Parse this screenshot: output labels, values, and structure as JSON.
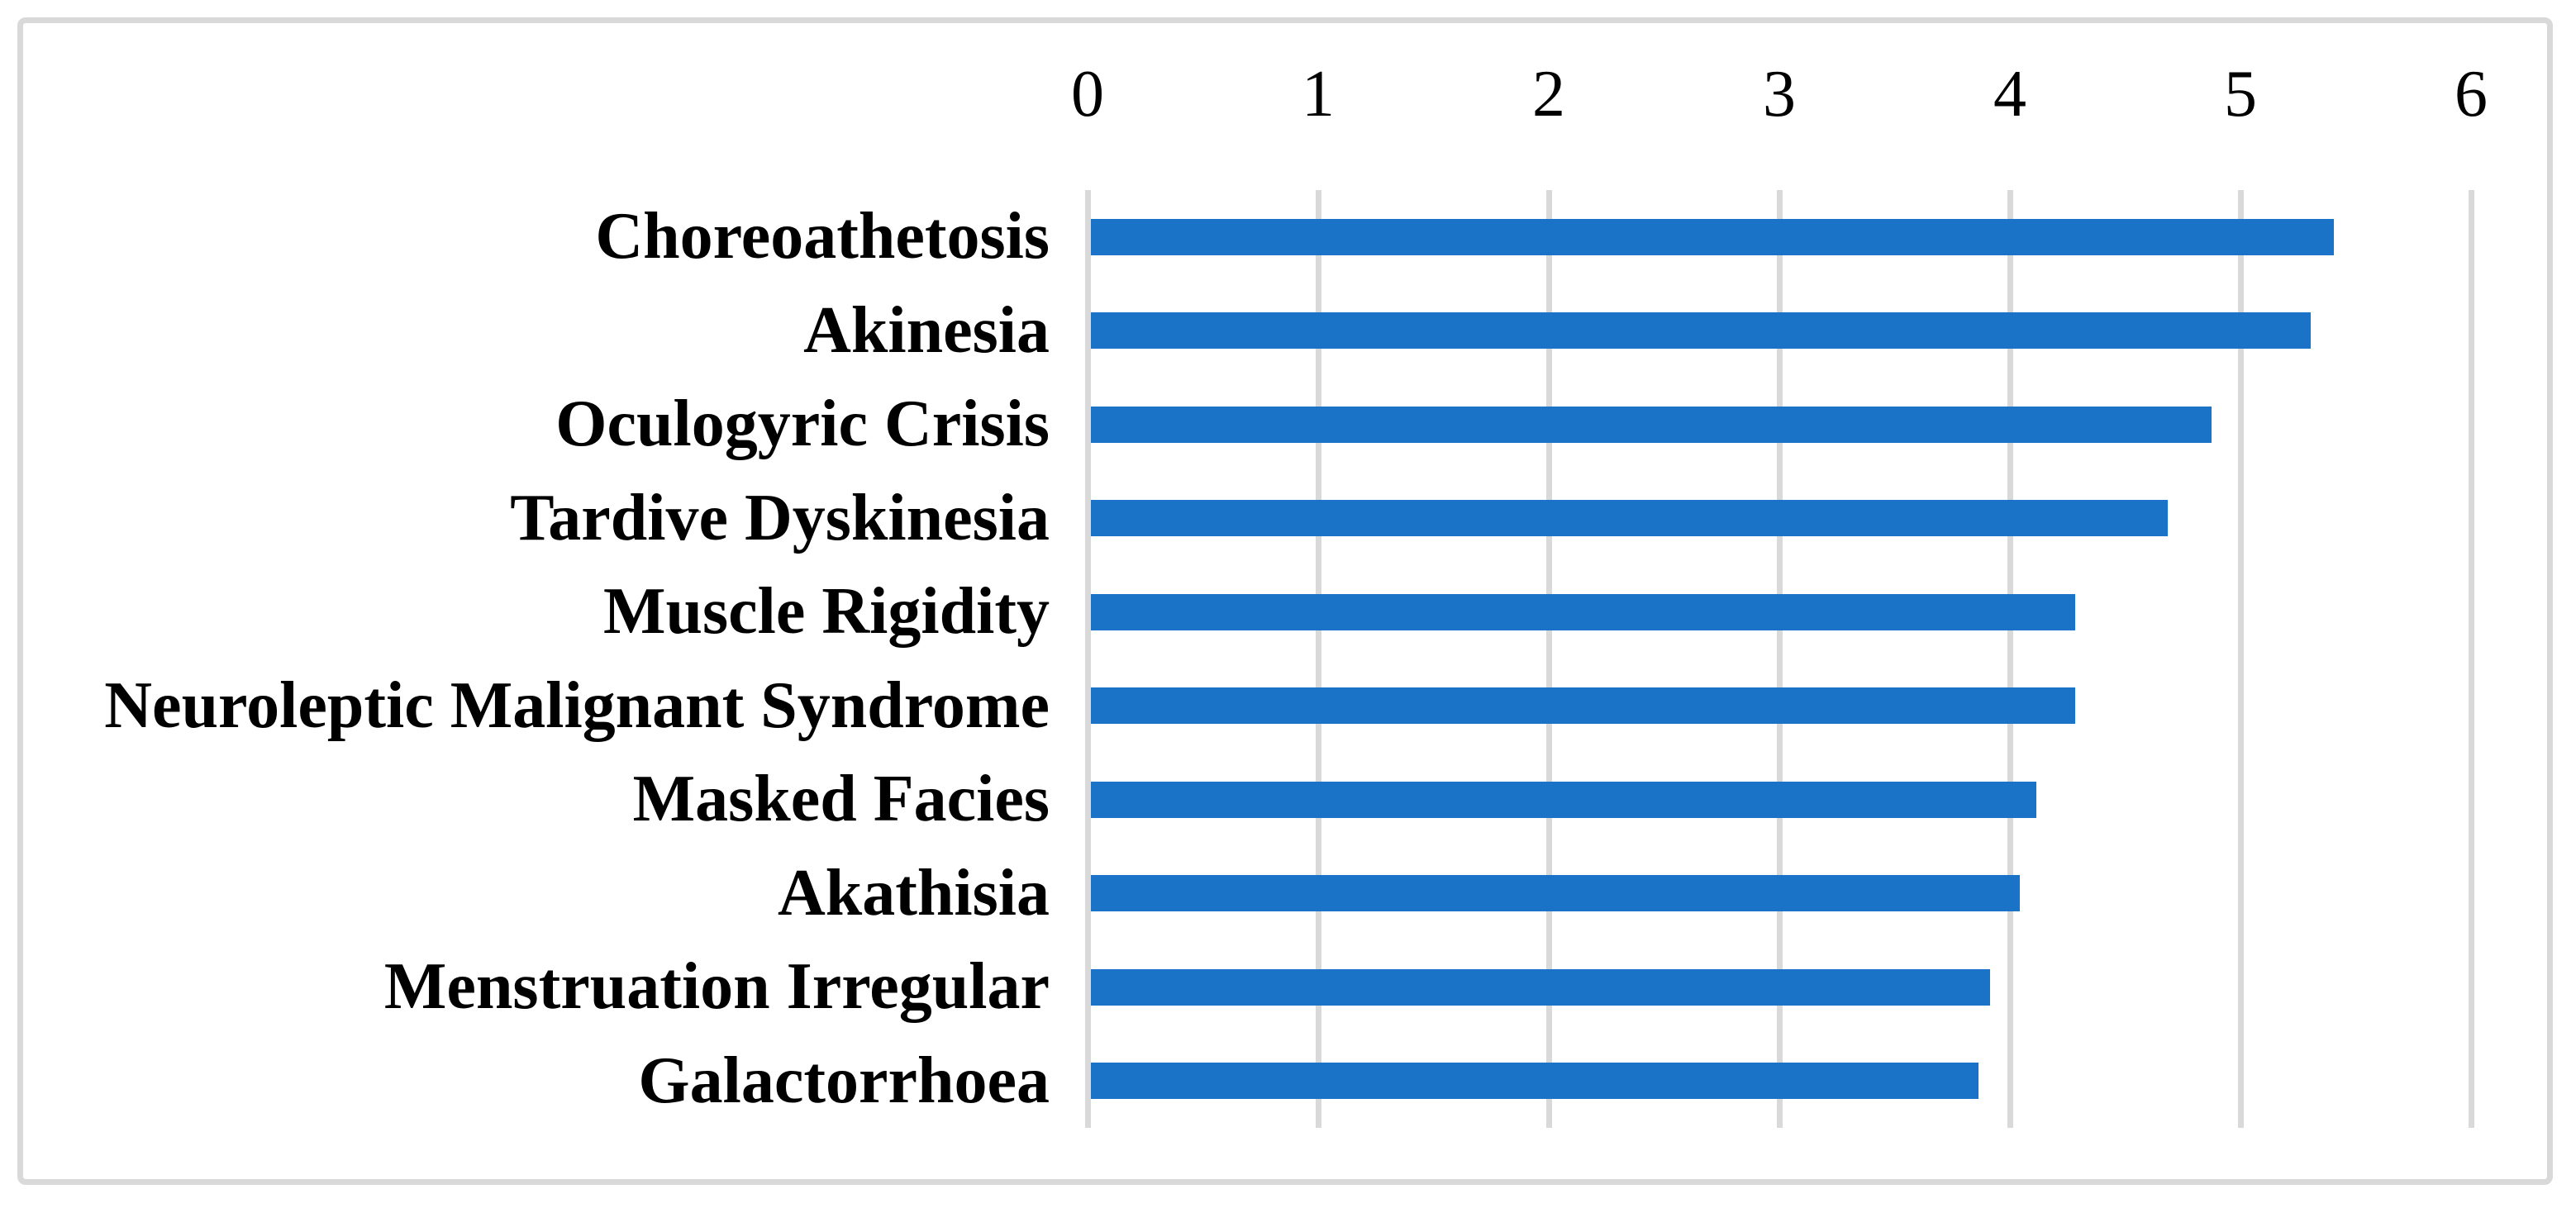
{
  "figure": {
    "background_color": "#FFFFFF",
    "border_color": "#D9D9D9",
    "title": "",
    "legend": "none"
  },
  "chart_data": {
    "type": "bar",
    "orientation": "horizontal",
    "title": "",
    "xlabel": "",
    "ylabel": "",
    "value_axis_position": "top",
    "grid": "vertical",
    "gridline_color": "#D9D9D9",
    "bar_color": "#1B73C7",
    "xlim": [
      0,
      6
    ],
    "x_ticks": [
      "0",
      "1",
      "2",
      "3",
      "4",
      "5",
      "6"
    ],
    "categories": [
      "Choreoathetosis",
      "Akinesia",
      "Oculogyric Crisis",
      "Tardive Dyskinesia",
      "Muscle Rigidity",
      "Neuroleptic Malignant Syndrome",
      "Masked Facies",
      "Akathisia",
      "Menstruation Irregular",
      "Galactorrhoea"
    ],
    "values": [
      5.39,
      5.29,
      4.86,
      4.67,
      4.27,
      4.27,
      4.1,
      4.03,
      3.9,
      3.85
    ]
  }
}
